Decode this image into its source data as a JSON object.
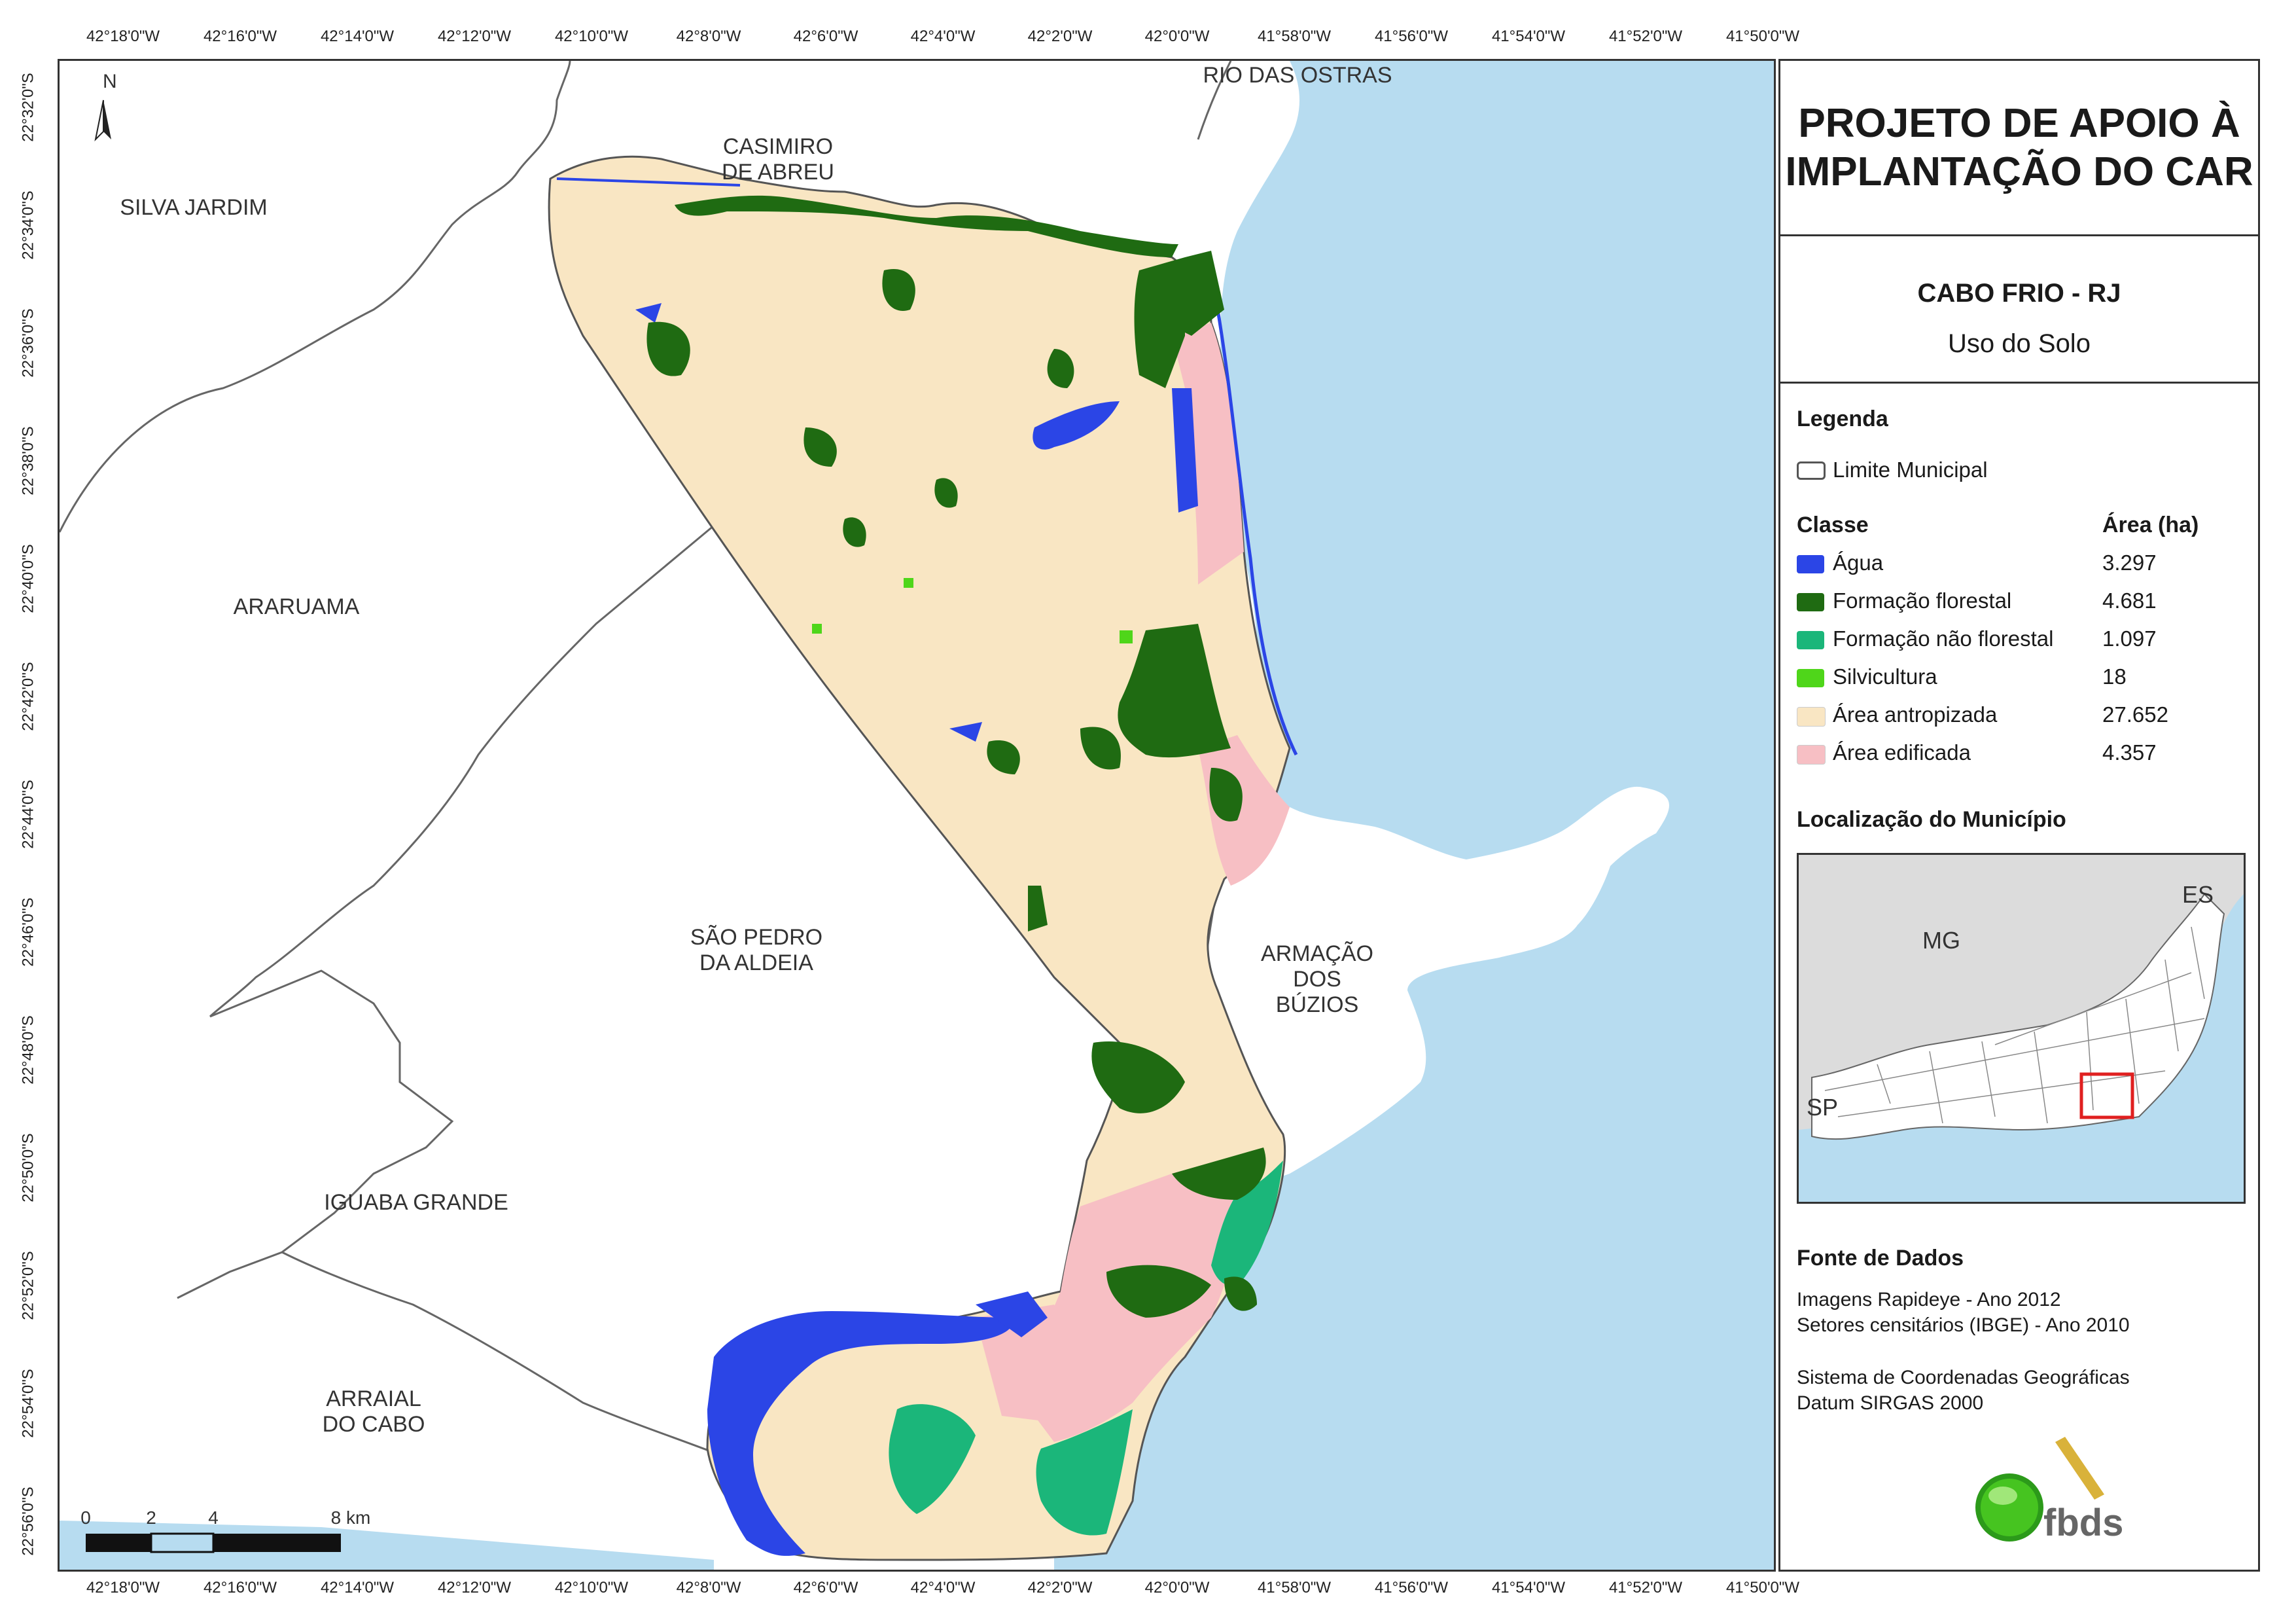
{
  "coords": {
    "top": [
      "42°18'0\"W",
      "42°16'0\"W",
      "42°14'0\"W",
      "42°12'0\"W",
      "42°10'0\"W",
      "42°8'0\"W",
      "42°6'0\"W",
      "42°4'0\"W",
      "42°2'0\"W",
      "42°0'0\"W",
      "41°58'0\"W",
      "41°56'0\"W",
      "41°54'0\"W",
      "41°52'0\"W",
      "41°50'0\"W"
    ],
    "left": [
      "22°32'0\"S",
      "22°34'0\"S",
      "22°36'0\"S",
      "22°38'0\"S",
      "22°40'0\"S",
      "22°42'0\"S",
      "22°44'0\"S",
      "22°46'0\"S",
      "22°48'0\"S",
      "22°50'0\"S",
      "22°52'0\"S",
      "22°54'0\"S",
      "22°56'0\"S"
    ]
  },
  "map": {
    "north": "N",
    "municipalities": {
      "silva_jardim": "SILVA JARDIM",
      "casimiro": [
        "CASIMIRO",
        "DE ABREU"
      ],
      "rio_das_ostras": "RIO DAS OSTRAS",
      "araruama": "ARARUAMA",
      "sao_pedro": [
        "SÃO PEDRO",
        "DA ALDEIA"
      ],
      "armacao": [
        "ARMAÇÃO",
        "DOS",
        "BÚZIOS"
      ],
      "iguaba": "IGUABA GRANDE",
      "arraial": [
        "ARRAIAL",
        "DO CABO"
      ]
    },
    "scale": [
      "0",
      "2",
      "4",
      "8 km"
    ]
  },
  "panel": {
    "title": [
      "PROJETO DE APOIO À",
      "IMPLANTAÇÃO DO CAR"
    ],
    "municipio": "CABO FRIO - RJ",
    "tema": "Uso do Solo",
    "legenda_heading": "Legenda",
    "limite": "Limite Municipal",
    "classe_heading": "Classe",
    "area_heading": "Área (ha)",
    "classes": [
      {
        "label": "Água",
        "area": "3.297",
        "color": "#2b45e6"
      },
      {
        "label": "Formação florestal",
        "area": "4.681",
        "color": "#1f6b12"
      },
      {
        "label": "Formação não florestal",
        "area": "1.097",
        "color": "#1bb67a"
      },
      {
        "label": "Silvicultura",
        "area": "18",
        "color": "#4fd61a"
      },
      {
        "label": "Área antropizada",
        "area": "27.652",
        "color": "#f9e6c3"
      },
      {
        "label": "Área edificada",
        "area": "4.357",
        "color": "#f7bfc4"
      }
    ],
    "localizacao_heading": "Localização do Município",
    "inset_labels": {
      "mg": "MG",
      "es": "ES",
      "sp": "SP"
    },
    "fonte_heading": "Fonte de Dados",
    "fonte_lines": [
      "Imagens Rapideye - Ano 2012",
      "Setores censitários (IBGE) - Ano 2010"
    ],
    "sistema_lines": [
      "Sistema de Coordenadas Geográficas",
      "Datum SIRGAS 2000"
    ],
    "logo_text": "fbds"
  },
  "colors": {
    "water": "#b7dcf0",
    "land": "#ffffff",
    "border": "#555555",
    "inset_gray": "#dcdcdc",
    "highlight": "#e02020"
  }
}
